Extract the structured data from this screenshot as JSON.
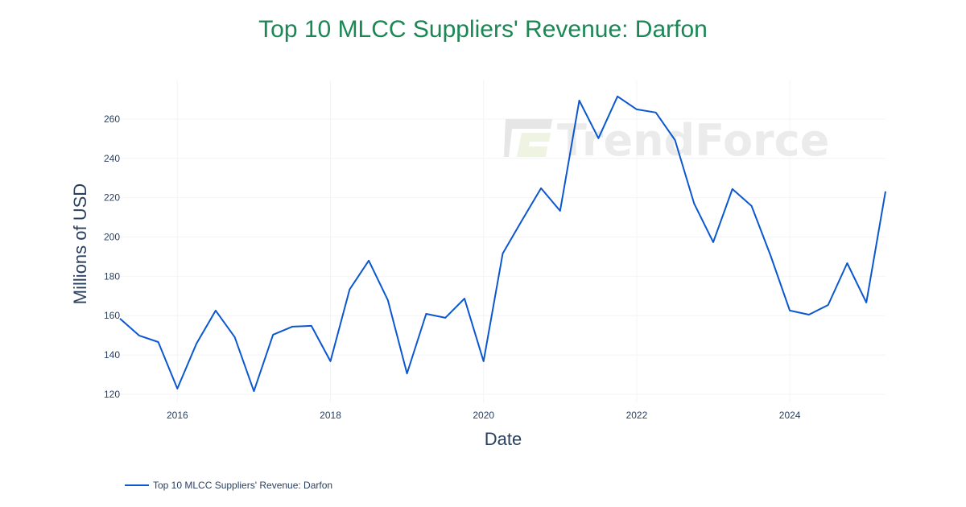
{
  "title": "Top 10 MLCC Suppliers' Revenue: Darfon",
  "title_color": "#1a8754",
  "line_color": "#0b57d0",
  "watermark": {
    "text": "TrendForce",
    "icon": "trendforce-logo-icon"
  },
  "legend": {
    "items": [
      {
        "label": "Top 10 MLCC Suppliers' Revenue: Darfon"
      }
    ]
  },
  "xaxis": {
    "title": "Date",
    "ticks": [
      "2016",
      "2018",
      "2020",
      "2022",
      "2024"
    ]
  },
  "yaxis": {
    "title": "Millions of USD",
    "ticks": [
      "120",
      "140",
      "160",
      "180",
      "200",
      "220",
      "240",
      "260"
    ]
  },
  "chart_data": {
    "type": "line",
    "title": "Top 10 MLCC Suppliers' Revenue: Darfon",
    "xlabel": "Date",
    "ylabel": "Millions of USD",
    "xlim": [
      "2015-04",
      "2025-04"
    ],
    "ylim": [
      115.9,
      279.6
    ],
    "grid": true,
    "legend_position": "bottom-left",
    "x_tick_labels": [
      "2016",
      "2018",
      "2020",
      "2022",
      "2024"
    ],
    "y_tick_labels": [
      120,
      140,
      160,
      180,
      200,
      220,
      240,
      260
    ],
    "x": [
      "2015-04",
      "2015-07",
      "2015-10",
      "2016-01",
      "2016-04",
      "2016-07",
      "2016-10",
      "2017-01",
      "2017-04",
      "2017-07",
      "2017-10",
      "2018-01",
      "2018-04",
      "2018-07",
      "2018-10",
      "2019-01",
      "2019-04",
      "2019-07",
      "2019-10",
      "2020-01",
      "2020-04",
      "2020-07",
      "2020-10",
      "2021-01",
      "2021-04",
      "2021-07",
      "2021-10",
      "2022-01",
      "2022-04",
      "2022-07",
      "2022-10",
      "2023-01",
      "2023-04",
      "2023-07",
      "2023-10",
      "2024-01",
      "2024-04",
      "2024-07",
      "2024-10",
      "2025-01",
      "2025-04"
    ],
    "series": [
      {
        "name": "Top 10 MLCC Suppliers' Revenue: Darfon",
        "values": [
          158.5,
          149.9,
          146.6,
          122.9,
          145.8,
          162.6,
          149.1,
          121.6,
          150.3,
          154.4,
          154.8,
          136.8,
          173.3,
          188.0,
          167.9,
          130.6,
          160.9,
          158.9,
          168.7,
          136.8,
          191.6,
          208.4,
          224.8,
          213.3,
          269.4,
          250.2,
          271.5,
          264.9,
          263.3,
          249.3,
          217.0,
          197.4,
          224.4,
          215.8,
          190.4,
          162.6,
          160.5,
          165.4,
          186.7,
          166.7,
          223.2
        ]
      }
    ]
  }
}
